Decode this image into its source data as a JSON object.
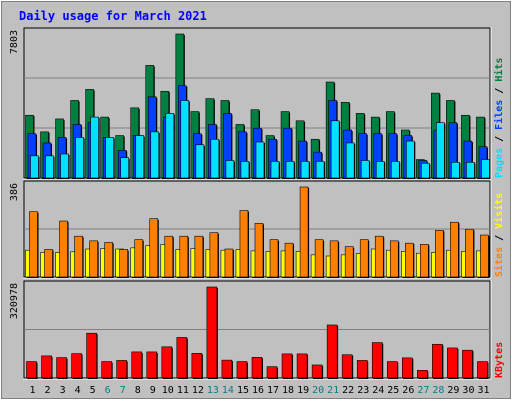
{
  "title": "Daily usage for March 2021",
  "colors": {
    "title": "#0000ff",
    "hits": "#008040",
    "files": "#0040ff",
    "pages": "#00e0ff",
    "visits": "#ffff00",
    "sites": "#ff8000",
    "kbytes": "#ff0000",
    "weekday_label": "#000000",
    "weekend_label": "#008080",
    "plot_bg": "#c0c0c0"
  },
  "chart_data": [
    {
      "type": "bar",
      "panel": "hits-files-pages",
      "ymax_label": "7803",
      "ylim": [
        0,
        7803
      ],
      "right_label": {
        "pages": "Pages",
        "files": "Files",
        "hits": "Hits",
        "sep": " / "
      },
      "categories": [
        "1",
        "2",
        "3",
        "4",
        "5",
        "6",
        "7",
        "8",
        "9",
        "10",
        "11",
        "12",
        "13",
        "14",
        "15",
        "16",
        "17",
        "18",
        "19",
        "20",
        "21",
        "22",
        "23",
        "24",
        "25",
        "26",
        "27",
        "28",
        "29",
        "30",
        "31"
      ],
      "weekend_days": [
        "6",
        "7",
        "13",
        "14",
        "20",
        "21",
        "27",
        "28"
      ],
      "series": [
        {
          "name": "Hits",
          "values": [
            3400,
            2500,
            3200,
            4200,
            4800,
            3300,
            2300,
            3800,
            6100,
            4700,
            7803,
            3600,
            4300,
            4200,
            2900,
            3700,
            2300,
            3600,
            3100,
            2100,
            5200,
            4100,
            3500,
            3300,
            3600,
            2600,
            1000,
            4600,
            4200,
            3400,
            3300
          ]
        },
        {
          "name": "Files",
          "values": [
            2400,
            1900,
            2200,
            2900,
            3000,
            2200,
            1500,
            2300,
            4400,
            3300,
            5000,
            2400,
            2900,
            3500,
            2500,
            2700,
            2100,
            2700,
            2000,
            1400,
            4200,
            2600,
            2400,
            2400,
            2400,
            2300,
            950,
            2600,
            3000,
            2000,
            1700
          ]
        },
        {
          "name": "Pages",
          "values": [
            1200,
            1200,
            1300,
            2200,
            3300,
            2200,
            1100,
            2300,
            2500,
            3500,
            4200,
            1800,
            2100,
            950,
            900,
            1950,
            900,
            900,
            900,
            900,
            3100,
            1900,
            950,
            900,
            900,
            2000,
            800,
            3000,
            850,
            850,
            1000
          ]
        }
      ]
    },
    {
      "type": "bar",
      "panel": "visits-sites",
      "ymax_label": "386",
      "ylim": [
        0,
        386
      ],
      "right_label": {
        "sites": "Sites",
        "visits": "Visits",
        "sep": " / "
      },
      "categories": [
        "1",
        "2",
        "3",
        "4",
        "5",
        "6",
        "7",
        "8",
        "9",
        "10",
        "11",
        "12",
        "13",
        "14",
        "15",
        "16",
        "17",
        "18",
        "19",
        "20",
        "21",
        "22",
        "23",
        "24",
        "25",
        "26",
        "27",
        "28",
        "29",
        "30",
        "31"
      ],
      "series": [
        {
          "name": "Visits",
          "values": [
            115,
            105,
            105,
            108,
            120,
            122,
            120,
            125,
            135,
            140,
            118,
            122,
            118,
            115,
            118,
            112,
            110,
            112,
            110,
            95,
            90,
            95,
            100,
            120,
            115,
            110,
            102,
            105,
            115,
            110,
            112
          ]
        },
        {
          "name": "Sites",
          "values": [
            280,
            118,
            240,
            175,
            155,
            148,
            118,
            160,
            250,
            175,
            175,
            175,
            190,
            120,
            285,
            230,
            160,
            145,
            386,
            160,
            155,
            130,
            160,
            175,
            155,
            145,
            140,
            200,
            235,
            205,
            180
          ]
        }
      ]
    },
    {
      "type": "bar",
      "panel": "kbytes",
      "ymax_label": "320978",
      "ylim": [
        0,
        320978
      ],
      "right_label": {
        "kbytes": "KBytes"
      },
      "categories": [
        "1",
        "2",
        "3",
        "4",
        "5",
        "6",
        "7",
        "8",
        "9",
        "10",
        "11",
        "12",
        "13",
        "14",
        "15",
        "16",
        "17",
        "18",
        "19",
        "20",
        "21",
        "22",
        "23",
        "24",
        "25",
        "26",
        "27",
        "28",
        "29",
        "30",
        "31"
      ],
      "series": [
        {
          "name": "KBytes",
          "values": [
            58000,
            78000,
            72000,
            86000,
            158000,
            58000,
            62000,
            92000,
            92000,
            110000,
            143000,
            87000,
            320978,
            63000,
            58000,
            73000,
            40000,
            85000,
            85000,
            46000,
            187000,
            82000,
            62000,
            125000,
            58000,
            71000,
            27000,
            119000,
            106000,
            98000,
            58000
          ]
        }
      ]
    }
  ]
}
